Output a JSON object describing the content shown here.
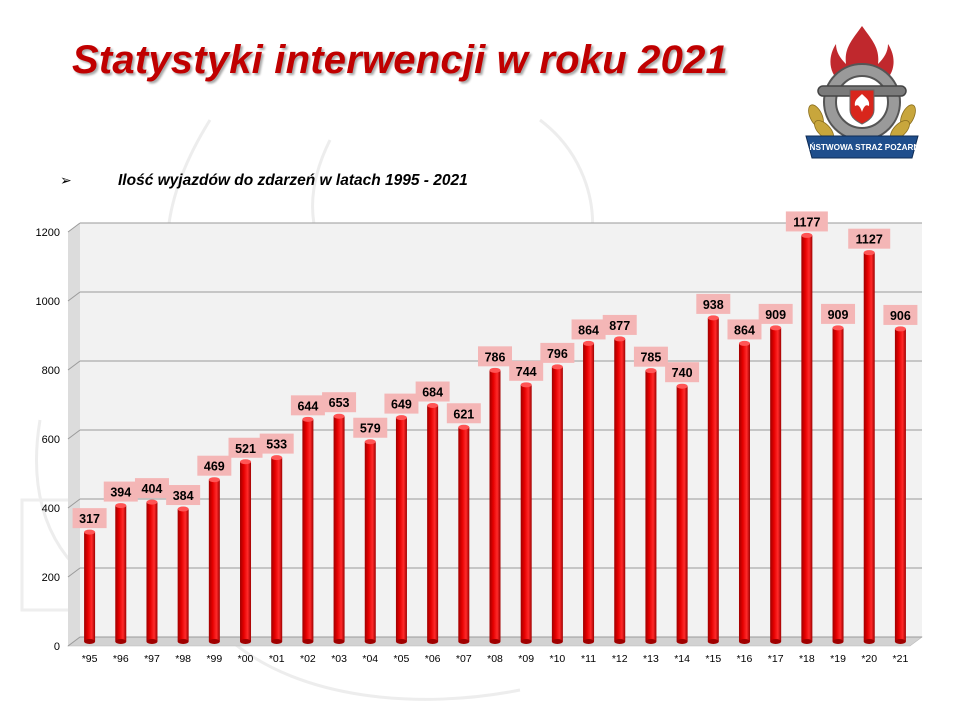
{
  "title": "Statystyki interwencji w roku 2021",
  "subtitle": "Ilość wyjazdów do zdarzeń w latach 1995 - 2021",
  "bullet_glyph": "➢",
  "logo": {
    "text": "PAŃSTWOWA STRAŻ POŻARNA",
    "colors": {
      "flame": "#c0282d",
      "ring": "#8c8c8c",
      "leaves": "#c8a63c",
      "ribbon": "#1f4e8c"
    }
  },
  "colors": {
    "title": "#c00000",
    "bar": "#e60000",
    "bar_dark": "#a00000",
    "label_bg": "#f4b6b6",
    "grid": "#9a9a9a",
    "plot_bg": "#f2f2f2"
  },
  "chart_data": {
    "type": "bar",
    "categories": [
      "*95",
      "*96",
      "*97",
      "*98",
      "*99",
      "*00",
      "*01",
      "*02",
      "*03",
      "*04",
      "*05",
      "*06",
      "*07",
      "*08",
      "*09",
      "*10",
      "*11",
      "*12",
      "*13",
      "*14",
      "*15",
      "*16",
      "*17",
      "*18",
      "*19",
      "*20",
      "*21"
    ],
    "values": [
      317,
      394,
      404,
      384,
      469,
      521,
      533,
      644,
      653,
      579,
      649,
      684,
      621,
      786,
      744,
      796,
      864,
      877,
      785,
      740,
      938,
      864,
      909,
      1177,
      909,
      1127,
      906
    ],
    "yticks": [
      0,
      200,
      400,
      600,
      800,
      1000,
      1200
    ],
    "ylim": [
      0,
      1200
    ],
    "grid": true,
    "legend": "none",
    "data_labels": true
  }
}
